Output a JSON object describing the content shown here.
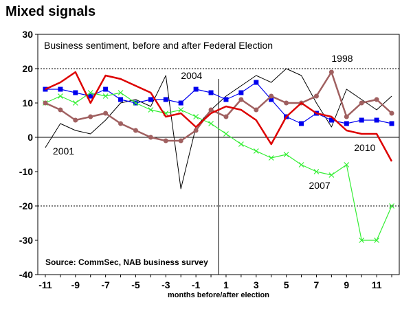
{
  "title": "Mixed signals",
  "chart_data": {
    "type": "line",
    "subtitle": "Business sentiment, before and after Federal Election",
    "source": "Source: CommSec, NAB business survey",
    "xlabel": "months before/after election",
    "ylabel": "",
    "xlim": [
      -11.5,
      12.5
    ],
    "ylim": [
      -40,
      30
    ],
    "x_ticks": [
      -11,
      -9,
      -7,
      -5,
      -3,
      -1,
      1,
      3,
      5,
      7,
      9,
      11
    ],
    "y_ticks": [
      30,
      20,
      10,
      0,
      -10,
      -20,
      -30,
      -40
    ],
    "x": [
      -11,
      -10,
      -9,
      -8,
      -7,
      -6,
      -5,
      -4,
      -3,
      -2,
      -1,
      0,
      1,
      2,
      3,
      4,
      5,
      6,
      7,
      8,
      9,
      10,
      11,
      12
    ],
    "series": [
      {
        "name": "2001",
        "color": "#000000",
        "marker": "none",
        "width": 1,
        "values": [
          -3,
          4,
          2,
          1,
          5,
          10,
          11,
          9,
          18,
          -15,
          3,
          8,
          12,
          15,
          18,
          16,
          20,
          18,
          10,
          3,
          14,
          11,
          8,
          12
        ],
        "label": {
          "text": "2001",
          "x": -10.5,
          "y": -5
        }
      },
      {
        "name": "2004",
        "color": "#0000ee",
        "marker": "square",
        "width": 1.2,
        "values": [
          14,
          14,
          13,
          12,
          14,
          11,
          10,
          11,
          11,
          10,
          14,
          13,
          11,
          13,
          16,
          11,
          6,
          4,
          7,
          5,
          4,
          5,
          5,
          4
        ],
        "label": {
          "text": "2004",
          "x": -2,
          "y": 17
        }
      },
      {
        "name": "2007",
        "color": "#33ee33",
        "marker": "cross",
        "width": 1.2,
        "values": [
          10,
          12,
          10,
          13,
          12,
          13,
          10,
          8,
          7,
          8,
          6,
          4,
          1,
          -2,
          -4,
          -6,
          -5,
          -8,
          -10,
          -11,
          -8,
          -30,
          -30,
          -20
        ],
        "label": {
          "text": "2007",
          "x": 6.5,
          "y": -15
        }
      },
      {
        "name": "1998",
        "color": "#a06060",
        "marker": "circle",
        "width": 2.5,
        "values": [
          10,
          8,
          5,
          6,
          7,
          4,
          2,
          0,
          -1,
          -1,
          2,
          8,
          6,
          11,
          8,
          12,
          10,
          10,
          12,
          19,
          6,
          10,
          11,
          7
        ],
        "label": {
          "text": "1998",
          "x": 8,
          "y": 22
        }
      },
      {
        "name": "2010",
        "color": "#dd0000",
        "marker": "none",
        "width": 2.5,
        "values": [
          14,
          16,
          19,
          10,
          18,
          17,
          15,
          13,
          6,
          7,
          3,
          7,
          9,
          8,
          5,
          -2,
          6,
          10,
          7,
          6,
          2,
          1,
          1,
          -7
        ],
        "label": {
          "text": "2010",
          "x": 9.5,
          "y": -4
        }
      }
    ],
    "election_marker_x": 0.5,
    "grid": "horizontal dashed at -20 and 20"
  }
}
